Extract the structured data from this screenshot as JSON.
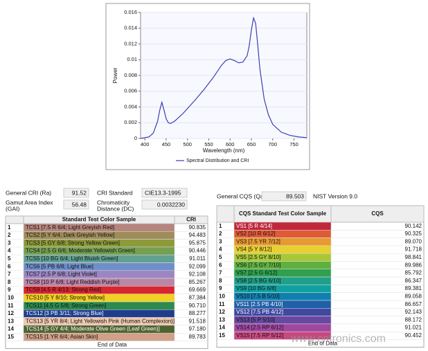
{
  "chart_data": {
    "type": "line",
    "x_label": "Wavelength (nm)",
    "y_label": "Power",
    "x": [
      390,
      410,
      420,
      430,
      435,
      440,
      445,
      450,
      455,
      460,
      470,
      480,
      490,
      500,
      520,
      540,
      560,
      580,
      590,
      600,
      610,
      620,
      630,
      640,
      645,
      650,
      655,
      660,
      665,
      670,
      680,
      690,
      700,
      720,
      740,
      760,
      780
    ],
    "series": [
      {
        "name": "Spectral Distribution and CRI",
        "color": "#3b3bb5",
        "values": [
          0.0,
          0.0002,
          0.0007,
          0.0022,
          0.0036,
          0.0046,
          0.0036,
          0.0025,
          0.002,
          0.0019,
          0.0022,
          0.0027,
          0.0032,
          0.0038,
          0.005,
          0.0063,
          0.0077,
          0.0093,
          0.0099,
          0.0101,
          0.0099,
          0.0096,
          0.0097,
          0.0105,
          0.0118,
          0.0138,
          0.0153,
          0.0146,
          0.0118,
          0.0088,
          0.005,
          0.003,
          0.0018,
          0.0008,
          0.0004,
          0.0002,
          0.0001
        ]
      }
    ],
    "xlim": [
      390,
      780
    ],
    "xticks": [
      400,
      450,
      500,
      550,
      600,
      650,
      700,
      750
    ],
    "ylim": [
      0,
      0.016
    ],
    "yticks": [
      0,
      0.002,
      0.004,
      0.006,
      0.008,
      0.01,
      0.012,
      0.014,
      0.016
    ],
    "grid": true
  },
  "cri_panel": {
    "general_cri_label": "General CRI (Ra)",
    "general_cri": "91.52",
    "cri_standard_label": "CRI Standard",
    "cri_standard": "CIE13.3-1995",
    "gai_label": [
      "Gamut Area Index",
      "(GAI)"
    ],
    "gai": "56.48",
    "dc_label": [
      "Chromaticity",
      "Distance (DC)"
    ],
    "dc": "0.0032230",
    "table": {
      "headers": [
        "Standard Test Color Sample",
        "CRI"
      ],
      "footer": "End of Data",
      "rows": [
        {
          "index": "1",
          "sample": "TCS1 [7.5 R 6/4; Light Greyish Red]",
          "value": "90.835",
          "color": "#b5857d"
        },
        {
          "index": "2",
          "sample": "TCS2 [5 Y 6/4; Dark Greyish Yellow]",
          "value": "94.483",
          "color": "#a08c5a"
        },
        {
          "index": "3",
          "sample": "TCS3 [5 GY 6/8; Strong Yellow Green]",
          "value": "95.875",
          "color": "#8c9a3a"
        },
        {
          "index": "4",
          "sample": "TCS4 [2.5 G 6/6; Moderate Yellowish Green]",
          "value": "90.446",
          "color": "#74a050"
        },
        {
          "index": "5",
          "sample": "TCS5 [10 BG 6/4; Light Bluish Green]",
          "value": "91.011",
          "color": "#62a092"
        },
        {
          "index": "6",
          "sample": "TCS6 [5 PB 6/8; Light Blue]",
          "value": "92.099",
          "color": "#6f8fca"
        },
        {
          "index": "7",
          "sample": "TCS7 [2.5 P 6/8; Light Violet]",
          "value": "92.108",
          "color": "#9c86c2"
        },
        {
          "index": "8",
          "sample": "TCS8 [10 P 6/8; Light Reddish Purple]",
          "value": "85.267",
          "color": "#ba86a8"
        },
        {
          "index": "9",
          "sample": "TCS9 [4.5 R 4/13; Strong Red]",
          "value": "69.669",
          "color": "#d8262e"
        },
        {
          "index": "10",
          "sample": "TCS10 [5 Y 8/10; Strong Yellow]",
          "value": "87.384",
          "color": "#f0d020"
        },
        {
          "index": "11",
          "sample": "TCS11 [4.5 G 5/8; Strong Green]",
          "value": "90.710",
          "color": "#2d8a4e"
        },
        {
          "index": "12",
          "sample": "TCS12 [3 PB 3/11; Strong Blue]",
          "value": "88.277",
          "color": "#1e3e8c"
        },
        {
          "index": "13",
          "sample": "TCS13 [5 YR 8/4; Light Yellowish Pink (Human Complexion)]",
          "value": "91.518",
          "color": "#f0c8b0"
        },
        {
          "index": "14",
          "sample": "TCS14 [5 GY 4/4; Moderate Olive Green (Leaf Green)]",
          "value": "97.180",
          "color": "#4e6230"
        },
        {
          "index": "15",
          "sample": "TCS15 [1 YR 6/4; Asian Skin]",
          "value": "89.783",
          "color": "#d0a088"
        }
      ]
    }
  },
  "cqs_panel": {
    "general_cqs_label": "General CQS (Qa)",
    "general_cqs": "89.503",
    "version": "NIST Version 9.0",
    "table": {
      "headers": [
        "CQS Standard Test Color Sample",
        "CQS"
      ],
      "footer": "End of Data",
      "rows": [
        {
          "index": "1",
          "sample": "VS1 [5 R 4/14]",
          "value": "90.142",
          "color": "#c0283c"
        },
        {
          "index": "2",
          "sample": "VS2 [10 R 6/12]",
          "value": "90.325",
          "color": "#e05a38"
        },
        {
          "index": "3",
          "sample": "VS3 [7.5 YR 7/12]",
          "value": "89.070",
          "color": "#e89a30"
        },
        {
          "index": "4",
          "sample": "VS4 [5 Y 8/12]",
          "value": "91.718",
          "color": "#e8d030"
        },
        {
          "index": "5",
          "sample": "VS5 [2.5 GY 8/10]",
          "value": "98.841",
          "color": "#a8c838"
        },
        {
          "index": "6",
          "sample": "VS6 [7.5 GY 7/10]",
          "value": "89.986",
          "color": "#60b040"
        },
        {
          "index": "7",
          "sample": "VS7 [2.5 G 6/12]",
          "value": "85.792",
          "color": "#30a050"
        },
        {
          "index": "8",
          "sample": "VS8 [2.5 BG 6/10]",
          "value": "86.347",
          "color": "#20a088"
        },
        {
          "index": "9",
          "sample": "VS9 [10 BG 6/8]",
          "value": "89.381",
          "color": "#10a0a0"
        },
        {
          "index": "10",
          "sample": "VS10 [7.5 B 5/10]",
          "value": "89.058",
          "color": "#1080b0"
        },
        {
          "index": "11",
          "sample": "VS11 [2.5 PB 4/10]",
          "value": "86.657",
          "color": "#2060a8"
        },
        {
          "index": "12",
          "sample": "VS12 [7.5 PB 4/12]",
          "value": "92.143",
          "color": "#4048a0"
        },
        {
          "index": "13",
          "sample": "VS13 [5 P 5/10]",
          "value": "88.172",
          "color": "#6848a0"
        },
        {
          "index": "14",
          "sample": "VS14 [2.5 RP 6/12]",
          "value": "91.021",
          "color": "#a048a0"
        },
        {
          "index": "15",
          "sample": "VS15 [7.5 RP 5/12]",
          "value": "90.452",
          "color": "#c84880"
        }
      ]
    }
  },
  "watermark": "www.cntronics.com"
}
